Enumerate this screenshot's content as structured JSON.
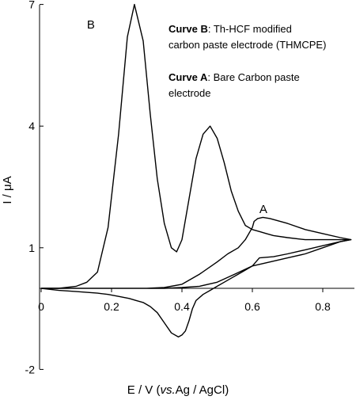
{
  "chart_data": {
    "type": "line",
    "title": "",
    "xlabel_parts": [
      "E / V (",
      "vs.",
      "Ag / AgCl)"
    ],
    "ylabel": "I / μA",
    "xlim": [
      0,
      0.9
    ],
    "ylim": [
      -2,
      7
    ],
    "x_ticks": [
      {
        "value": 0,
        "label": "0"
      },
      {
        "value": 0.2,
        "label": "0.2"
      },
      {
        "value": 0.4,
        "label": "0.4"
      },
      {
        "value": 0.6,
        "label": "0.6"
      },
      {
        "value": 0.8,
        "label": "0.8"
      }
    ],
    "y_ticks": [
      {
        "value": -2,
        "label": "-2"
      },
      {
        "value": 1,
        "label": "1"
      },
      {
        "value": 4,
        "label": "4"
      },
      {
        "value": 7,
        "label": "7"
      }
    ],
    "grid": false,
    "legend_entries": [
      {
        "bold": "Curve B",
        "text": ": Th-HCF modified",
        "line2": "carbon paste electrode (THMCPE)"
      },
      {
        "bold": "Curve A",
        "text": ": Bare Carbon paste",
        "line2": "electrode"
      }
    ],
    "legend_position": "top-right",
    "series": [
      {
        "name": "B",
        "label_at": [
          0.13,
          6.5
        ],
        "x": [
          0.0,
          0.05,
          0.1,
          0.13,
          0.16,
          0.19,
          0.22,
          0.245,
          0.265,
          0.29,
          0.31,
          0.33,
          0.35,
          0.37,
          0.385,
          0.4,
          0.42,
          0.44,
          0.46,
          0.48,
          0.5,
          0.52,
          0.54,
          0.56,
          0.58,
          0.6,
          0.62,
          0.64,
          0.66,
          0.7,
          0.75,
          0.8,
          0.85,
          0.88,
          0.85,
          0.8,
          0.75,
          0.7,
          0.65,
          0.6,
          0.58,
          0.56,
          0.54,
          0.52,
          0.5,
          0.48,
          0.46,
          0.44,
          0.43,
          0.42,
          0.41,
          0.4,
          0.39,
          0.37,
          0.35,
          0.33,
          0.31,
          0.29,
          0.27,
          0.25,
          0.22,
          0.19,
          0.16,
          0.13,
          0.1,
          0.05,
          0.0
        ],
        "y": [
          0.0,
          0.0,
          0.05,
          0.15,
          0.4,
          1.5,
          3.8,
          6.2,
          7.0,
          6.1,
          4.3,
          2.7,
          1.6,
          1.0,
          0.9,
          1.2,
          2.2,
          3.2,
          3.8,
          4.0,
          3.7,
          3.1,
          2.4,
          1.9,
          1.55,
          1.45,
          1.4,
          1.35,
          1.3,
          1.25,
          1.2,
          1.2,
          1.2,
          1.2,
          1.15,
          1.0,
          0.85,
          0.75,
          0.65,
          0.55,
          0.45,
          0.35,
          0.25,
          0.15,
          0.05,
          -0.05,
          -0.15,
          -0.3,
          -0.5,
          -0.8,
          -1.05,
          -1.15,
          -1.2,
          -1.1,
          -0.85,
          -0.6,
          -0.45,
          -0.35,
          -0.3,
          -0.25,
          -0.2,
          -0.15,
          -0.12,
          -0.1,
          -0.08,
          -0.05,
          0.0
        ]
      },
      {
        "name": "A",
        "label_at": [
          0.62,
          1.95
        ],
        "x": [
          0.0,
          0.1,
          0.2,
          0.3,
          0.35,
          0.4,
          0.45,
          0.5,
          0.53,
          0.56,
          0.58,
          0.6,
          0.605,
          0.615,
          0.63,
          0.65,
          0.7,
          0.75,
          0.8,
          0.85,
          0.88,
          0.85,
          0.8,
          0.75,
          0.7,
          0.66,
          0.62,
          0.6,
          0.55,
          0.5,
          0.45,
          0.4,
          0.35,
          0.3,
          0.2,
          0.1,
          0.0
        ],
        "y": [
          0.0,
          0.0,
          0.0,
          0.0,
          0.02,
          0.1,
          0.35,
          0.65,
          0.85,
          1.0,
          1.2,
          1.5,
          1.65,
          1.72,
          1.75,
          1.72,
          1.6,
          1.45,
          1.35,
          1.25,
          1.2,
          1.15,
          1.05,
          0.95,
          0.85,
          0.78,
          0.75,
          0.55,
          0.35,
          0.15,
          0.05,
          0.02,
          0.0,
          0.0,
          0.0,
          0.0,
          0.0
        ]
      }
    ]
  }
}
